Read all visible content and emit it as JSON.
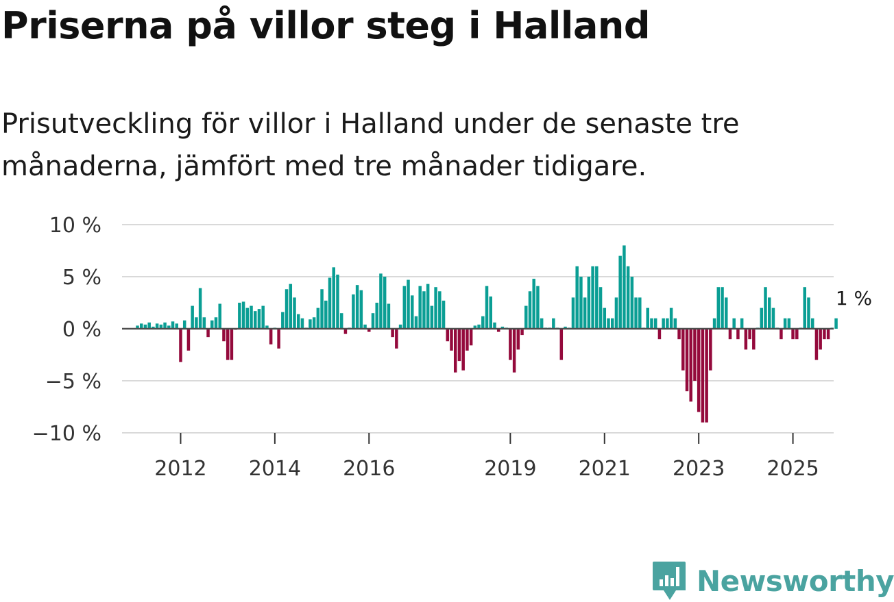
{
  "header": {
    "title": "Priserna på villor steg i Halland",
    "subtitle": "Prisutveckling för villor i Halland under de senaste tre månaderna, jämfört med tre månader tidigare."
  },
  "brand": {
    "name": "Newsworthy",
    "logo_icon": "bar-chart-logo-icon"
  },
  "colors": {
    "positive": "#0a9e94",
    "negative": "#940a3c",
    "gridline": "#d9d9d9",
    "zero_line": "#4d4d4d",
    "brand": "#4aa3a0"
  },
  "chart_data": {
    "type": "bar",
    "title": "Priserna på villor steg i Halland",
    "subtitle": "Prisutveckling för villor i Halland under de senaste tre månaderna, jämfört med tre månader tidigare.",
    "xlabel": "",
    "ylabel": "",
    "unit": "%",
    "ylim": [
      -10,
      10
    ],
    "y_ticks": [
      10,
      5,
      0,
      -5,
      -10
    ],
    "y_tick_labels": [
      "10 %",
      "5 %",
      "0 %",
      "−5 %",
      "−10 %"
    ],
    "x_start": "2011-01",
    "frequency": "monthly",
    "x_tick_labels": [
      {
        "label": "2012",
        "month_index": 11
      },
      {
        "label": "2014",
        "month_index": 35
      },
      {
        "label": "2016",
        "month_index": 59
      },
      {
        "label": "2019",
        "month_index": 95
      },
      {
        "label": "2021",
        "month_index": 119
      },
      {
        "label": "2023",
        "month_index": 143
      },
      {
        "label": "2025",
        "month_index": 167
      }
    ],
    "last_value_label": "1 %",
    "values": [
      0.3,
      0.5,
      0.4,
      0.6,
      0.2,
      0.5,
      0.4,
      0.6,
      0.3,
      0.7,
      0.5,
      -3.2,
      0.8,
      -2.1,
      2.2,
      1.1,
      3.9,
      1.1,
      -0.8,
      0.8,
      1.1,
      2.4,
      -1.2,
      -3.0,
      -3.0,
      -0.1,
      2.5,
      2.6,
      2.0,
      2.2,
      1.7,
      1.9,
      2.2,
      0.3,
      -1.5,
      0.1,
      -1.9,
      1.6,
      3.8,
      4.3,
      3.0,
      1.4,
      1.0,
      0.1,
      0.9,
      1.1,
      2.0,
      3.8,
      2.7,
      4.9,
      5.9,
      5.2,
      1.5,
      -0.5,
      0.1,
      3.3,
      4.2,
      3.7,
      0.4,
      -0.3,
      1.5,
      2.5,
      5.3,
      5.0,
      2.4,
      -0.8,
      -1.9,
      0.4,
      4.1,
      4.7,
      3.2,
      1.2,
      4.1,
      3.6,
      4.3,
      2.2,
      4.0,
      3.6,
      2.7,
      -1.2,
      -2.1,
      -4.2,
      -3.1,
      -4.0,
      -2.1,
      -1.6,
      0.3,
      0.4,
      1.2,
      4.1,
      3.1,
      0.6,
      -0.3,
      0.2,
      0.1,
      -3.0,
      -4.2,
      -2.0,
      -0.6,
      2.2,
      3.6,
      4.8,
      4.1,
      1.0,
      0.1,
      0.1,
      1.0,
      0.1,
      -3.0,
      0.2,
      0.1,
      3.0,
      6.0,
      5.0,
      3.0,
      5.0,
      6.0,
      6.0,
      4.0,
      2.0,
      1.0,
      1.0,
      3.0,
      7.0,
      8.0,
      6.0,
      5.0,
      3.0,
      3.0,
      0.1,
      2.0,
      1.0,
      1.0,
      -1.0,
      1.0,
      1.0,
      2.0,
      1.0,
      -1.0,
      -4.0,
      -6.0,
      -7.0,
      -5.0,
      -8.0,
      -9.0,
      -9.0,
      -4.0,
      1.0,
      4.0,
      4.0,
      3.0,
      -1.0,
      1.0,
      -1.0,
      1.0,
      -2.0,
      -1.0,
      -2.0,
      0.1,
      2.0,
      4.0,
      3.0,
      2.0,
      0.1,
      -1.0,
      1.0,
      1.0,
      -1.0,
      -1.0,
      0.1,
      4.0,
      3.0,
      1.0,
      -3.0,
      -2.0,
      -1.0,
      -1.0,
      0.1,
      1.0
    ]
  }
}
